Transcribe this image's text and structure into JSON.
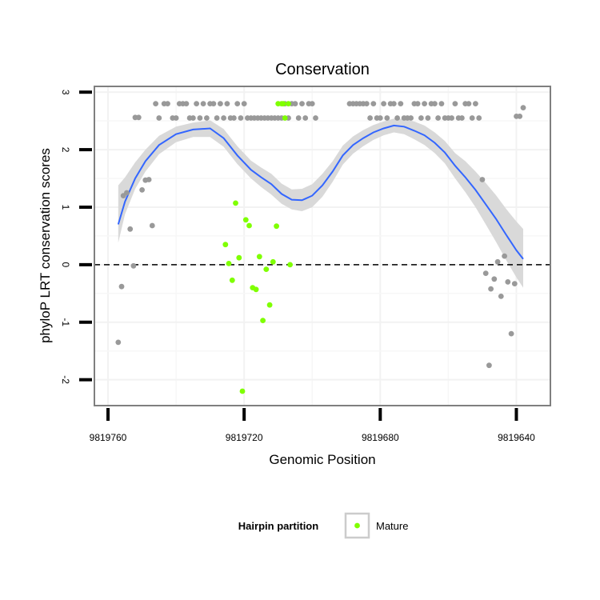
{
  "chart_data": {
    "type": "scatter",
    "title": "Conservation",
    "xlabel": "Genomic Position",
    "ylabel": "phyloP LRT conservation scores",
    "x_reversed": true,
    "xlim": [
      9819764,
      9819630
    ],
    "ylim": [
      -2.45,
      3.1
    ],
    "x_ticks": [
      9819760,
      9819720,
      9819680,
      9819640
    ],
    "x_tick_labels": [
      "9819760",
      "9819720",
      "9819680",
      "9819640"
    ],
    "y_ticks": [
      -2,
      -1,
      0,
      1,
      2,
      3
    ],
    "y_tick_labels": [
      "-2",
      "-1",
      "0",
      "1",
      "2",
      "3"
    ],
    "reference_line": {
      "y": 0,
      "style": "dashed"
    },
    "grid": true,
    "legend": {
      "title": "Hairpin partition",
      "position": "bottom",
      "entries": [
        {
          "label": "Mature",
          "color": "#7fff00"
        }
      ]
    },
    "colors": {
      "other": "#999999",
      "mature": "#7fff00",
      "smooth": "#3366ff",
      "band": "#d9d9d9"
    },
    "series": [
      {
        "name": "Other",
        "color": "#999999",
        "points": [
          [
            9819757,
            -1.35
          ],
          [
            9819756,
            -0.38
          ],
          [
            9819755.5,
            1.2
          ],
          [
            9819754.5,
            1.25
          ],
          [
            9819753.5,
            0.62
          ],
          [
            9819752.5,
            -0.02
          ],
          [
            9819752,
            2.56
          ],
          [
            9819751,
            2.56
          ],
          [
            9819750,
            1.3
          ],
          [
            9819749,
            1.47
          ],
          [
            9819748,
            1.48
          ],
          [
            9819747,
            0.68
          ],
          [
            9819746,
            2.8
          ],
          [
            9819745,
            2.55
          ],
          [
            9819743.5,
            2.8
          ],
          [
            9819742.5,
            2.8
          ],
          [
            9819741,
            2.55
          ],
          [
            9819740,
            2.55
          ],
          [
            9819739,
            2.8
          ],
          [
            9819738,
            2.8
          ],
          [
            9819737,
            2.8
          ],
          [
            9819736,
            2.55
          ],
          [
            9819735,
            2.55
          ],
          [
            9819734,
            2.8
          ],
          [
            9819733,
            2.55
          ],
          [
            9819732,
            2.8
          ],
          [
            9819731,
            2.55
          ],
          [
            9819730,
            2.8
          ],
          [
            9819729,
            2.8
          ],
          [
            9819728,
            2.55
          ],
          [
            9819727,
            2.8
          ],
          [
            9819726,
            2.55
          ],
          [
            9819725,
            2.8
          ],
          [
            9819724,
            2.55
          ],
          [
            9819723,
            2.55
          ],
          [
            9819722,
            2.8
          ],
          [
            9819721,
            2.55
          ],
          [
            9819720,
            2.8
          ],
          [
            9819719,
            2.55
          ],
          [
            9819718,
            2.55
          ],
          [
            9819717,
            2.55
          ],
          [
            9819716,
            2.55
          ],
          [
            9819715,
            2.55
          ],
          [
            9819714,
            2.55
          ],
          [
            9819713,
            2.55
          ],
          [
            9819712,
            2.55
          ],
          [
            9819711,
            2.55
          ],
          [
            9819710,
            2.55
          ],
          [
            9819709,
            2.55
          ],
          [
            9819708,
            2.8
          ],
          [
            9819707,
            2.55
          ],
          [
            9819706,
            2.8
          ],
          [
            9819705,
            2.8
          ],
          [
            9819704,
            2.55
          ],
          [
            9819703,
            2.8
          ],
          [
            9819702,
            2.55
          ],
          [
            9819701,
            2.8
          ],
          [
            9819700,
            2.8
          ],
          [
            9819699,
            2.55
          ],
          [
            9819689,
            2.8
          ],
          [
            9819688,
            2.8
          ],
          [
            9819687,
            2.8
          ],
          [
            9819686,
            2.8
          ],
          [
            9819685,
            2.8
          ],
          [
            9819684,
            2.8
          ],
          [
            9819683,
            2.55
          ],
          [
            9819682,
            2.8
          ],
          [
            9819681,
            2.55
          ],
          [
            9819680,
            2.55
          ],
          [
            9819679,
            2.8
          ],
          [
            9819678,
            2.55
          ],
          [
            9819677,
            2.8
          ],
          [
            9819676,
            2.8
          ],
          [
            9819675,
            2.55
          ],
          [
            9819674,
            2.8
          ],
          [
            9819673,
            2.55
          ],
          [
            9819672,
            2.55
          ],
          [
            9819671,
            2.55
          ],
          [
            9819670,
            2.8
          ],
          [
            9819669,
            2.8
          ],
          [
            9819668,
            2.55
          ],
          [
            9819667,
            2.8
          ],
          [
            9819666,
            2.55
          ],
          [
            9819665,
            2.8
          ],
          [
            9819664,
            2.8
          ],
          [
            9819663,
            2.55
          ],
          [
            9819662,
            2.8
          ],
          [
            9819661,
            2.55
          ],
          [
            9819660,
            2.55
          ],
          [
            9819659,
            2.55
          ],
          [
            9819658,
            2.8
          ],
          [
            9819657,
            2.55
          ],
          [
            9819656,
            2.55
          ],
          [
            9819655,
            2.8
          ],
          [
            9819654,
            2.8
          ],
          [
            9819653,
            2.55
          ],
          [
            9819652,
            2.8
          ],
          [
            9819651,
            2.55
          ],
          [
            9819650,
            1.48
          ],
          [
            9819649,
            -0.15
          ],
          [
            9819648,
            -1.75
          ],
          [
            9819647.5,
            -0.42
          ],
          [
            9819646.5,
            -0.25
          ],
          [
            9819645.5,
            0.05
          ],
          [
            9819644.5,
            -0.55
          ],
          [
            9819643.5,
            0.15
          ],
          [
            9819642.5,
            -0.3
          ],
          [
            9819641.5,
            -1.2
          ],
          [
            9819640.5,
            -0.33
          ],
          [
            9819640,
            2.58
          ],
          [
            9819639,
            2.58
          ],
          [
            9819638,
            2.73
          ]
        ]
      },
      {
        "name": "Mature",
        "color": "#7fff00",
        "points": [
          [
            9819725.5,
            0.35
          ],
          [
            9819724.5,
            0.02
          ],
          [
            9819723.5,
            -0.27
          ],
          [
            9819722.5,
            1.07
          ],
          [
            9819721.5,
            0.12
          ],
          [
            9819720.5,
            -2.2
          ],
          [
            9819719.5,
            0.78
          ],
          [
            9819718.5,
            0.68
          ],
          [
            9819717.5,
            -0.4
          ],
          [
            9819716.5,
            -0.43
          ],
          [
            9819715.5,
            0.14
          ],
          [
            9819714.5,
            -0.97
          ],
          [
            9819713.5,
            -0.08
          ],
          [
            9819712.5,
            -0.7
          ],
          [
            9819711.5,
            0.05
          ],
          [
            9819710.5,
            0.67
          ],
          [
            9819710,
            2.8
          ],
          [
            9819709,
            2.8
          ],
          [
            9819708.5,
            2.8
          ],
          [
            9819708,
            2.55
          ],
          [
            9819707,
            2.8
          ],
          [
            9819706.5,
            0.0
          ]
        ]
      }
    ],
    "smooth": {
      "x": [
        9819757,
        9819755,
        9819752,
        9819749,
        9819745,
        9819740,
        9819735,
        9819730,
        9819726,
        9819722,
        9819718,
        9819715,
        9819712,
        9819709,
        9819706,
        9819703,
        9819700,
        9819697,
        9819694,
        9819691,
        9819688,
        9819685,
        9819682,
        9819679,
        9819676,
        9819673,
        9819670,
        9819667,
        9819664,
        9819661,
        9819658,
        9819655,
        9819652,
        9819649,
        9819646,
        9819643,
        9819640,
        9819638
      ],
      "y": [
        0.7,
        1.1,
        1.5,
        1.8,
        2.08,
        2.27,
        2.35,
        2.37,
        2.2,
        1.9,
        1.65,
        1.52,
        1.4,
        1.23,
        1.13,
        1.12,
        1.2,
        1.38,
        1.62,
        1.9,
        2.08,
        2.2,
        2.3,
        2.37,
        2.42,
        2.4,
        2.33,
        2.25,
        2.12,
        1.95,
        1.72,
        1.52,
        1.3,
        1.05,
        0.8,
        0.52,
        0.25,
        0.1
      ],
      "lower": [
        0.38,
        0.88,
        1.32,
        1.62,
        1.92,
        2.13,
        2.22,
        2.22,
        2.05,
        1.75,
        1.5,
        1.35,
        1.22,
        1.06,
        0.96,
        0.93,
        1.0,
        1.18,
        1.44,
        1.74,
        1.93,
        2.06,
        2.17,
        2.25,
        2.3,
        2.27,
        2.18,
        2.08,
        1.94,
        1.76,
        1.5,
        1.26,
        1.0,
        0.7,
        0.4,
        0.08,
        -0.22,
        -0.4
      ],
      "upper": [
        1.38,
        1.52,
        1.78,
        2.0,
        2.24,
        2.4,
        2.47,
        2.51,
        2.36,
        2.06,
        1.81,
        1.69,
        1.58,
        1.41,
        1.31,
        1.32,
        1.4,
        1.58,
        1.8,
        2.07,
        2.23,
        2.34,
        2.43,
        2.49,
        2.54,
        2.53,
        2.49,
        2.42,
        2.3,
        2.15,
        1.94,
        1.8,
        1.62,
        1.42,
        1.21,
        0.97,
        0.75,
        0.62
      ]
    }
  }
}
